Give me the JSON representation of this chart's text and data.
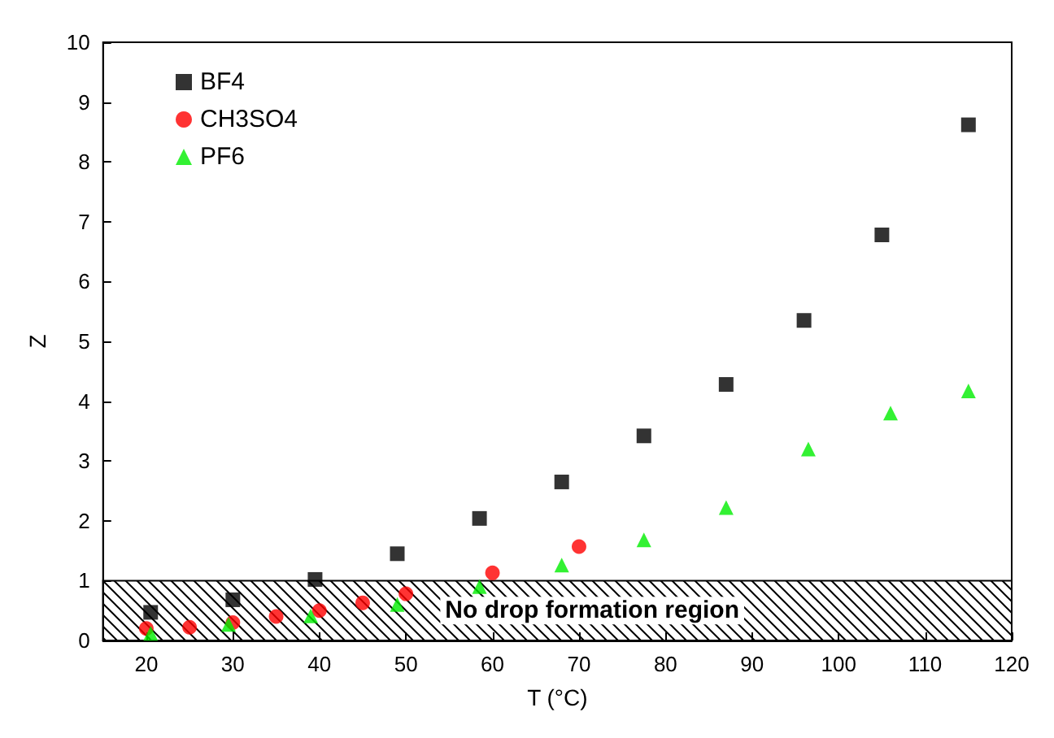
{
  "chart_data": {
    "type": "scatter",
    "xlabel": "T (°C)",
    "ylabel": "Z",
    "xlim": [
      15,
      120
    ],
    "xticks": [
      20,
      30,
      40,
      50,
      60,
      70,
      80,
      90,
      100,
      110,
      120
    ],
    "ylim": [
      0,
      10
    ],
    "yticks": [
      0,
      1,
      2,
      3,
      4,
      5,
      6,
      7,
      8,
      9,
      10
    ],
    "grid": false,
    "legend": "top left",
    "bands": [
      {
        "axis": "y",
        "from": 0,
        "to": 1,
        "label": "No drop formation region",
        "color": "#000000"
      }
    ],
    "series": [
      {
        "name": "BF4",
        "color": "#000000",
        "marker": "square",
        "x": [
          20.5,
          30,
          39.5,
          49,
          58.5,
          68,
          77.5,
          87,
          96,
          105,
          115
        ],
        "values": [
          0.47,
          0.68,
          1.02,
          1.45,
          2.04,
          2.65,
          3.42,
          4.28,
          5.35,
          6.78,
          8.62
        ]
      },
      {
        "name": "CH3SO4",
        "color": "#ff0000",
        "marker": "circle",
        "x": [
          20,
          25,
          30,
          35,
          40,
          45,
          50,
          60,
          70
        ],
        "values": [
          0.2,
          0.22,
          0.3,
          0.4,
          0.5,
          0.63,
          0.78,
          1.13,
          1.57
        ]
      },
      {
        "name": "PF6",
        "color": "#00ee00",
        "marker": "triangle",
        "x": [
          20.5,
          29.5,
          39,
          49,
          58.5,
          68,
          77.5,
          87,
          96.5,
          106,
          115
        ],
        "values": [
          0.12,
          0.27,
          0.41,
          0.6,
          0.9,
          1.26,
          1.68,
          2.22,
          3.2,
          3.8,
          4.17
        ]
      }
    ]
  }
}
